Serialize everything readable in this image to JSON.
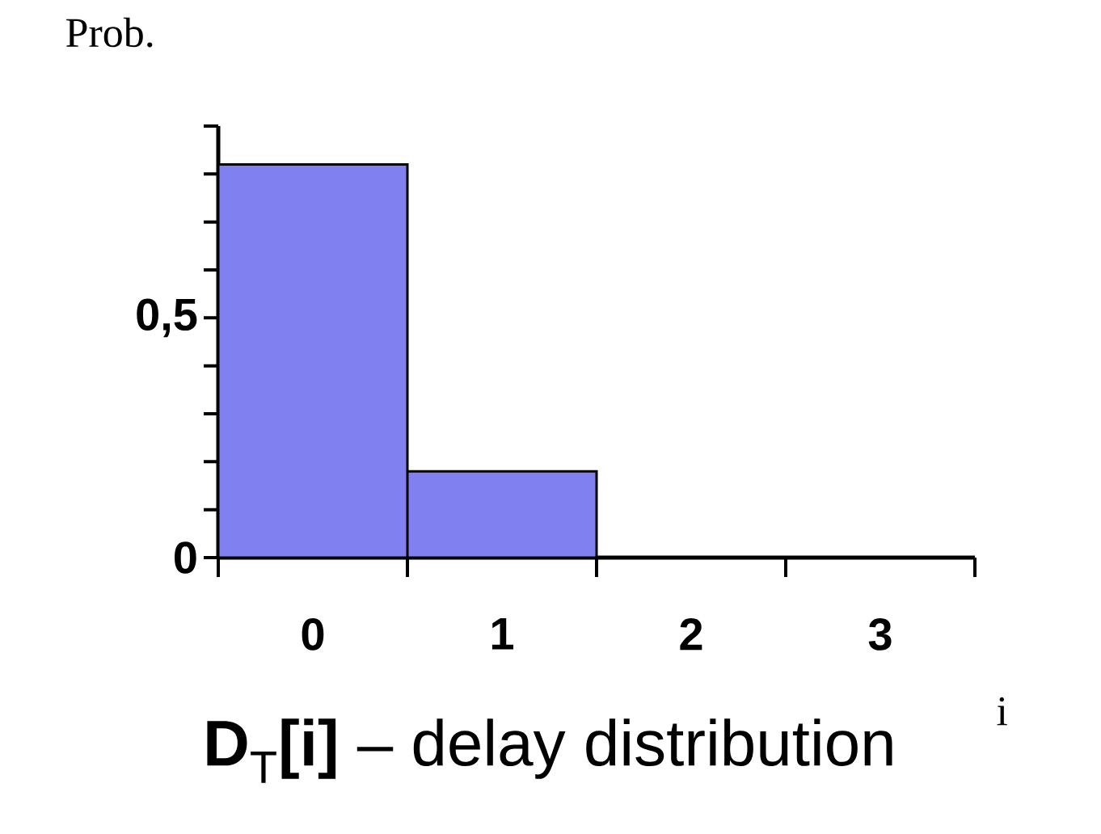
{
  "chart_data": {
    "type": "bar",
    "title": "**D**$_{T}$**[i]** – delay distribution",
    "xlabel": "i",
    "ylabel": "Prob.",
    "categories": [
      "0",
      "1",
      "2",
      "3"
    ],
    "values": [
      0.82,
      0.18,
      0,
      0
    ],
    "color": "#8080f0",
    "ylim": [
      0,
      0.9
    ],
    "yticks": [
      {
        "value": 0,
        "label": "0"
      },
      {
        "value": 0.1,
        "label": null
      },
      {
        "value": 0.2,
        "label": null
      },
      {
        "value": 0.3,
        "label": null
      },
      {
        "value": 0.4,
        "label": null
      },
      {
        "value": 0.5,
        "label": "0,5"
      },
      {
        "value": 0.6,
        "label": null
      },
      {
        "value": 0.7,
        "label": null
      },
      {
        "value": 0.8,
        "label": null
      },
      {
        "value": 0.9,
        "label": null
      }
    ]
  }
}
